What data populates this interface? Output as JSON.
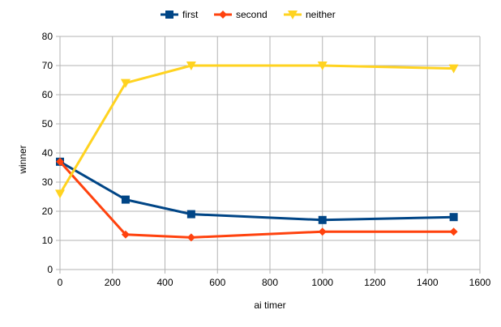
{
  "chart_data": {
    "type": "line",
    "title": "",
    "xlabel": "ai timer",
    "ylabel": "winner",
    "xlim": [
      0,
      1600
    ],
    "ylim": [
      0,
      80
    ],
    "xticks": [
      0,
      200,
      400,
      600,
      800,
      1000,
      1200,
      1400,
      1600
    ],
    "yticks": [
      0,
      10,
      20,
      30,
      40,
      50,
      60,
      70,
      80
    ],
    "grid": true,
    "legend_position": "top",
    "x": [
      0,
      250,
      500,
      1000,
      1500
    ],
    "series": [
      {
        "name": "first",
        "color": "#004586",
        "marker": "square",
        "values": [
          37,
          24,
          19,
          17,
          18
        ]
      },
      {
        "name": "second",
        "color": "#ff420e",
        "marker": "diamond",
        "values": [
          37,
          12,
          11,
          13,
          13
        ]
      },
      {
        "name": "neither",
        "color": "#ffd320",
        "marker": "triangle-down",
        "values": [
          26,
          64,
          70,
          70,
          69
        ]
      }
    ]
  }
}
